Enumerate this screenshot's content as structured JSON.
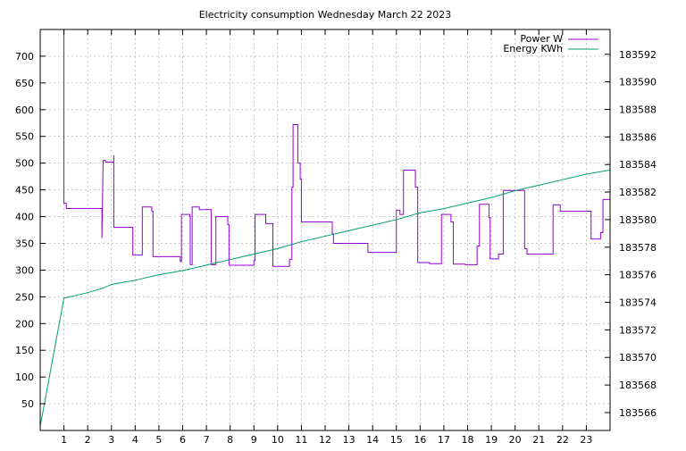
{
  "chart_data": {
    "type": "line",
    "title": "Electricity consumption Wednesday March 22 2023",
    "legend": {
      "placement": "top-right",
      "entries": [
        "Power W",
        "Energy KWh"
      ]
    },
    "grid": true,
    "x": {
      "range": [
        0,
        24
      ],
      "ticks": [
        1,
        2,
        3,
        4,
        5,
        6,
        7,
        8,
        9,
        10,
        11,
        12,
        13,
        14,
        15,
        16,
        17,
        18,
        19,
        20,
        21,
        22,
        23
      ],
      "tick_labels": [
        "1",
        "2",
        "3",
        "4",
        "5",
        "6",
        "7",
        "8",
        "9",
        "10",
        "11",
        "12",
        "13",
        "14",
        "15",
        "16",
        "17",
        "18",
        "19",
        "20",
        "21",
        "22",
        "23"
      ]
    },
    "y_left": {
      "range": [
        0,
        750
      ],
      "ticks": [
        50,
        100,
        150,
        200,
        250,
        300,
        350,
        400,
        450,
        500,
        550,
        600,
        650,
        700
      ],
      "tick_labels": [
        "50",
        "100",
        "150",
        "200",
        "250",
        "300",
        "350",
        "400",
        "450",
        "500",
        "550",
        "600",
        "650",
        "700"
      ]
    },
    "y_right": {
      "range": [
        183564.7,
        183593.8
      ],
      "ticks": [
        183566,
        183568,
        183570,
        183572,
        183574,
        183576,
        183578,
        183580,
        183582,
        183584,
        183586,
        183588,
        183590,
        183592
      ],
      "tick_labels": [
        "183566",
        "183568",
        "183570",
        "183572",
        "183574",
        "183576",
        "183578",
        "183580",
        "183582",
        "183584",
        "183586",
        "183588",
        "183590",
        "183592"
      ]
    },
    "series": [
      {
        "name": "Power W",
        "axis": "left",
        "color": "#9400d3",
        "step": true,
        "points": [
          [
            1.0,
            750
          ],
          [
            1.0,
            425
          ],
          [
            1.1,
            425
          ],
          [
            1.1,
            415
          ],
          [
            2.6,
            415
          ],
          [
            2.6,
            360
          ],
          [
            2.65,
            505
          ],
          [
            2.75,
            505
          ],
          [
            2.75,
            502
          ],
          [
            3.1,
            502
          ],
          [
            3.1,
            515
          ],
          [
            3.1,
            380
          ],
          [
            3.9,
            380
          ],
          [
            3.9,
            328
          ],
          [
            4.3,
            328
          ],
          [
            4.3,
            418
          ],
          [
            4.7,
            418
          ],
          [
            4.7,
            410
          ],
          [
            4.75,
            410
          ],
          [
            4.75,
            325
          ],
          [
            5.9,
            325
          ],
          [
            5.9,
            316
          ],
          [
            5.95,
            316
          ],
          [
            5.95,
            404
          ],
          [
            6.3,
            404
          ],
          [
            6.3,
            400
          ],
          [
            6.32,
            400
          ],
          [
            6.32,
            310
          ],
          [
            6.4,
            310
          ],
          [
            6.4,
            418
          ],
          [
            6.7,
            418
          ],
          [
            6.7,
            413
          ],
          [
            7.2,
            413
          ],
          [
            7.2,
            402
          ],
          [
            7.2,
            310
          ],
          [
            7.4,
            310
          ],
          [
            7.4,
            400
          ],
          [
            7.9,
            400
          ],
          [
            7.9,
            385
          ],
          [
            7.95,
            385
          ],
          [
            7.95,
            309
          ],
          [
            9.0,
            309
          ],
          [
            9.0,
            318
          ],
          [
            9.05,
            318
          ],
          [
            9.05,
            404
          ],
          [
            9.5,
            404
          ],
          [
            9.5,
            387
          ],
          [
            9.8,
            387
          ],
          [
            9.8,
            307
          ],
          [
            10.5,
            307
          ],
          [
            10.5,
            320
          ],
          [
            10.6,
            320
          ],
          [
            10.6,
            455
          ],
          [
            10.65,
            455
          ],
          [
            10.65,
            572
          ],
          [
            10.85,
            572
          ],
          [
            10.85,
            500
          ],
          [
            10.95,
            500
          ],
          [
            10.95,
            470
          ],
          [
            11.0,
            470
          ],
          [
            11.0,
            390
          ],
          [
            12.3,
            390
          ],
          [
            12.3,
            368
          ],
          [
            12.35,
            368
          ],
          [
            12.35,
            350
          ],
          [
            13.8,
            350
          ],
          [
            13.8,
            333
          ],
          [
            15.0,
            333
          ],
          [
            15.0,
            412
          ],
          [
            15.15,
            412
          ],
          [
            15.15,
            404
          ],
          [
            15.3,
            404
          ],
          [
            15.3,
            487
          ],
          [
            15.8,
            487
          ],
          [
            15.8,
            455
          ],
          [
            15.9,
            455
          ],
          [
            15.9,
            314
          ],
          [
            16.4,
            314
          ],
          [
            16.4,
            312
          ],
          [
            16.9,
            312
          ],
          [
            16.9,
            404
          ],
          [
            17.3,
            404
          ],
          [
            17.3,
            390
          ],
          [
            17.4,
            390
          ],
          [
            17.4,
            311
          ],
          [
            17.9,
            311
          ],
          [
            17.9,
            310
          ],
          [
            18.4,
            310
          ],
          [
            18.4,
            345
          ],
          [
            18.5,
            345
          ],
          [
            18.5,
            423
          ],
          [
            18.9,
            423
          ],
          [
            18.9,
            398
          ],
          [
            18.95,
            398
          ],
          [
            18.95,
            321
          ],
          [
            19.3,
            321
          ],
          [
            19.3,
            330
          ],
          [
            19.5,
            330
          ],
          [
            19.5,
            449
          ],
          [
            20.4,
            449
          ],
          [
            20.4,
            340
          ],
          [
            20.5,
            340
          ],
          [
            20.5,
            330
          ],
          [
            21.6,
            330
          ],
          [
            21.6,
            422
          ],
          [
            21.9,
            422
          ],
          [
            21.9,
            410
          ],
          [
            23.2,
            410
          ],
          [
            23.2,
            358
          ],
          [
            23.6,
            358
          ],
          [
            23.6,
            370
          ],
          [
            23.7,
            370
          ],
          [
            23.7,
            432
          ],
          [
            24.0,
            432
          ]
        ]
      },
      {
        "name": "Energy KWh",
        "axis": "right",
        "color": "#009e73",
        "step": false,
        "points": [
          [
            0.0,
            183565.0
          ],
          [
            1.0,
            183574.3
          ],
          [
            2.0,
            183574.7
          ],
          [
            2.6,
            183575.0
          ],
          [
            3.0,
            183575.3
          ],
          [
            4.0,
            183575.6
          ],
          [
            5.0,
            183576.0
          ],
          [
            6.0,
            183576.3
          ],
          [
            7.0,
            183576.7
          ],
          [
            8.0,
            183577.1
          ],
          [
            9.0,
            183577.5
          ],
          [
            10.0,
            183577.9
          ],
          [
            11.0,
            183578.4
          ],
          [
            12.0,
            183578.8
          ],
          [
            13.0,
            183579.2
          ],
          [
            14.0,
            183579.6
          ],
          [
            15.0,
            183580.0
          ],
          [
            16.0,
            183580.5
          ],
          [
            17.0,
            183580.8
          ],
          [
            18.0,
            183581.2
          ],
          [
            19.0,
            183581.6
          ],
          [
            20.0,
            183582.1
          ],
          [
            21.0,
            183582.5
          ],
          [
            22.0,
            183582.9
          ],
          [
            23.0,
            183583.3
          ],
          [
            24.0,
            183583.6
          ]
        ]
      }
    ]
  }
}
